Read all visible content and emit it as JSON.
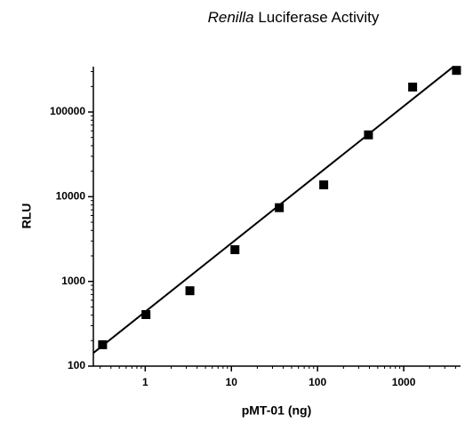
{
  "chart_data": {
    "type": "scatter",
    "title": [
      "Renilla",
      "Luciferase Activity"
    ],
    "xlabel": "pMT-01 (ng)",
    "ylabel": "RLU",
    "xscale": "log",
    "yscale": "log",
    "xlim": [
      0.25,
      4570
    ],
    "ylim": [
      100,
      343000
    ],
    "xticks": [
      1,
      10,
      100,
      1000
    ],
    "yticks": [
      100,
      1000,
      10000,
      100000
    ],
    "minor_ticks": true,
    "series": [
      {
        "name": "data",
        "color": "#000000",
        "marker": "square",
        "x": [
          0.32,
          1.02,
          3.3,
          11,
          36,
          118,
          390,
          1270,
          4100
        ],
        "values": [
          179,
          406,
          776,
          2370,
          7420,
          13800,
          53700,
          197000,
          310000
        ]
      },
      {
        "name": "fit",
        "color": "#000000",
        "marker": "line",
        "x": [
          0.25,
          3780
        ],
        "values": [
          143,
          343000
        ]
      }
    ]
  }
}
